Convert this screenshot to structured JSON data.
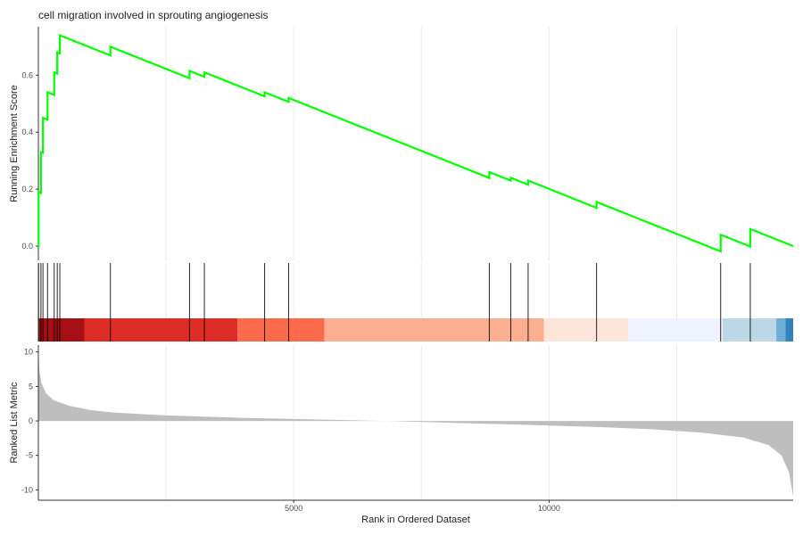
{
  "chart_data": {
    "type": "line",
    "title": "cell migration involved in sprouting angiogenesis",
    "xlabel": "Rank in Ordered Dataset",
    "ylabel_top": "Running Enrichment Score",
    "ylabel_bottom": "Ranked List Metric",
    "xlim": [
      0,
      14780
    ],
    "x_ticks": [
      5000,
      10000
    ],
    "grid": true,
    "legend": "none",
    "line_color": "#00ff00",
    "enrichment": {
      "ylim": [
        -0.05,
        0.77
      ],
      "y_ticks": [
        0.0,
        0.2,
        0.4,
        0.6
      ],
      "y_tick_labels": [
        "0.0",
        "0.2",
        "0.4",
        "0.6"
      ],
      "hits": [
        {
          "rank": 5,
          "peak": 0.19
        },
        {
          "rank": 50,
          "peak": 0.33
        },
        {
          "rank": 90,
          "peak": 0.45
        },
        {
          "rank": 180,
          "peak": 0.54
        },
        {
          "rank": 310,
          "peak": 0.61
        },
        {
          "rank": 370,
          "peak": 0.68
        },
        {
          "rank": 420,
          "peak": 0.74
        },
        {
          "rank": 1410,
          "peak": 0.7
        },
        {
          "rank": 2960,
          "peak": 0.615
        },
        {
          "rank": 3250,
          "peak": 0.61
        },
        {
          "rank": 4430,
          "peak": 0.54
        },
        {
          "rank": 4900,
          "peak": 0.52
        },
        {
          "rank": 8830,
          "peak": 0.26
        },
        {
          "rank": 9250,
          "peak": 0.24
        },
        {
          "rank": 9590,
          "peak": 0.23
        },
        {
          "rank": 10930,
          "peak": 0.155
        },
        {
          "rank": 13360,
          "peak": 0.04
        },
        {
          "rank": 13940,
          "peak": 0.06
        }
      ],
      "end_rank": 14780,
      "end_score": 0.0
    },
    "color_bands": [
      {
        "from": 0,
        "to": 900,
        "color": "#a50f15"
      },
      {
        "from": 900,
        "to": 3900,
        "color": "#de2d26"
      },
      {
        "from": 3900,
        "to": 5600,
        "color": "#fb6a4a"
      },
      {
        "from": 5600,
        "to": 9900,
        "color": "#fcae91"
      },
      {
        "from": 9900,
        "to": 11550,
        "color": "#fee5d9"
      },
      {
        "from": 11550,
        "to": 13400,
        "color": "#eff3ff"
      },
      {
        "from": 13400,
        "to": 14450,
        "color": "#bdd7e7"
      },
      {
        "from": 14450,
        "to": 14630,
        "color": "#6baed6"
      },
      {
        "from": 14630,
        "to": 14780,
        "color": "#3182bd"
      }
    ],
    "ranked_metric": {
      "ylim": [
        -11.5,
        11
      ],
      "y_ticks": [
        10,
        5,
        0,
        -5,
        -10
      ],
      "y_tick_labels": [
        "10",
        "5",
        "0",
        "-5",
        "-10"
      ],
      "fill_color": "#bebebe",
      "points": [
        {
          "rank": 0,
          "value": 10.5
        },
        {
          "rank": 20,
          "value": 7.2
        },
        {
          "rank": 60,
          "value": 5.5
        },
        {
          "rank": 150,
          "value": 4.0
        },
        {
          "rank": 300,
          "value": 3.0
        },
        {
          "rank": 600,
          "value": 2.2
        },
        {
          "rank": 1000,
          "value": 1.6
        },
        {
          "rank": 1500,
          "value": 1.2
        },
        {
          "rank": 2500,
          "value": 0.8
        },
        {
          "rank": 4000,
          "value": 0.45
        },
        {
          "rank": 5500,
          "value": 0.2
        },
        {
          "rank": 6800,
          "value": 0.0
        },
        {
          "rank": 8000,
          "value": -0.25
        },
        {
          "rank": 9500,
          "value": -0.55
        },
        {
          "rank": 11000,
          "value": -0.9
        },
        {
          "rank": 12000,
          "value": -1.2
        },
        {
          "rank": 13000,
          "value": -1.7
        },
        {
          "rank": 13800,
          "value": -2.4
        },
        {
          "rank": 14300,
          "value": -3.5
        },
        {
          "rank": 14550,
          "value": -5.0
        },
        {
          "rank": 14700,
          "value": -7.5
        },
        {
          "rank": 14780,
          "value": -11.0
        }
      ]
    }
  }
}
